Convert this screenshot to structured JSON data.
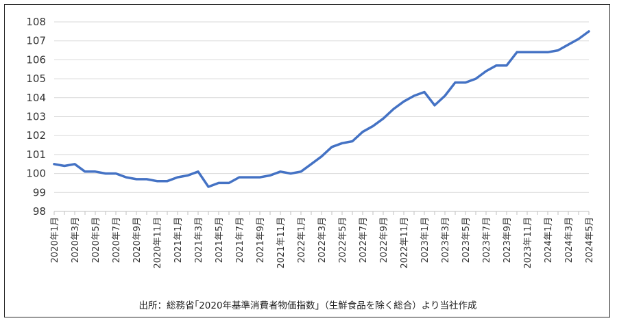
{
  "chart_data": {
    "type": "line",
    "title": "",
    "xlabel": "",
    "ylabel": "",
    "ylim": [
      98,
      108
    ],
    "y_ticks": [
      98,
      99,
      100,
      101,
      102,
      103,
      104,
      105,
      106,
      107,
      108
    ],
    "grid": true,
    "line_color": "#4472C4",
    "x": [
      "2020年1月",
      "2020年2月",
      "2020年3月",
      "2020年4月",
      "2020年5月",
      "2020年6月",
      "2020年7月",
      "2020年8月",
      "2020年9月",
      "2020年10月",
      "2020年11月",
      "2020年12月",
      "2021年1月",
      "2021年2月",
      "2021年3月",
      "2021年4月",
      "2021年5月",
      "2021年6月",
      "2021年7月",
      "2021年8月",
      "2021年9月",
      "2021年10月",
      "2021年11月",
      "2021年12月",
      "2022年1月",
      "2022年2月",
      "2022年3月",
      "2022年4月",
      "2022年5月",
      "2022年6月",
      "2022年7月",
      "2022年8月",
      "2022年9月",
      "2022年10月",
      "2022年11月",
      "2022年12月",
      "2023年1月",
      "2023年2月",
      "2023年3月",
      "2023年4月",
      "2023年5月",
      "2023年6月",
      "2023年7月",
      "2023年8月",
      "2023年9月",
      "2023年10月",
      "2023年11月",
      "2023年12月",
      "2024年1月",
      "2024年2月",
      "2024年3月",
      "2024年4月",
      "2024年5月"
    ],
    "x_tick_labels": [
      "2020年1月",
      "2020年3月",
      "2020年5月",
      "2020年7月",
      "2020年9月",
      "2020年11月",
      "2021年1月",
      "2021年3月",
      "2021年5月",
      "2021年7月",
      "2021年9月",
      "2021年11月",
      "2022年1月",
      "2022年3月",
      "2022年5月",
      "2022年7月",
      "2022年9月",
      "2022年11月",
      "2023年1月",
      "2023年3月",
      "2023年5月",
      "2023年7月",
      "2023年9月",
      "2023年11月",
      "2024年1月",
      "2024年3月",
      "2024年5月"
    ],
    "series": [
      {
        "values": [
          100.5,
          100.4,
          100.5,
          100.1,
          100.1,
          100.0,
          100.0,
          99.8,
          99.7,
          99.7,
          99.6,
          99.6,
          99.8,
          99.9,
          100.1,
          99.3,
          99.5,
          99.5,
          99.8,
          99.8,
          99.8,
          99.9,
          100.1,
          100.0,
          100.1,
          100.5,
          100.9,
          101.4,
          101.6,
          101.7,
          102.2,
          102.5,
          102.9,
          103.4,
          103.8,
          104.1,
          104.3,
          103.6,
          104.1,
          104.8,
          104.8,
          105.0,
          105.4,
          105.7,
          105.7,
          106.4,
          106.4,
          106.4,
          106.4,
          106.5,
          106.8,
          107.1,
          107.5
        ]
      }
    ]
  },
  "source_note": "出所：総務省｢2020年基準消費者物価指数」（生鮮食品を除く総合）より当社作成"
}
